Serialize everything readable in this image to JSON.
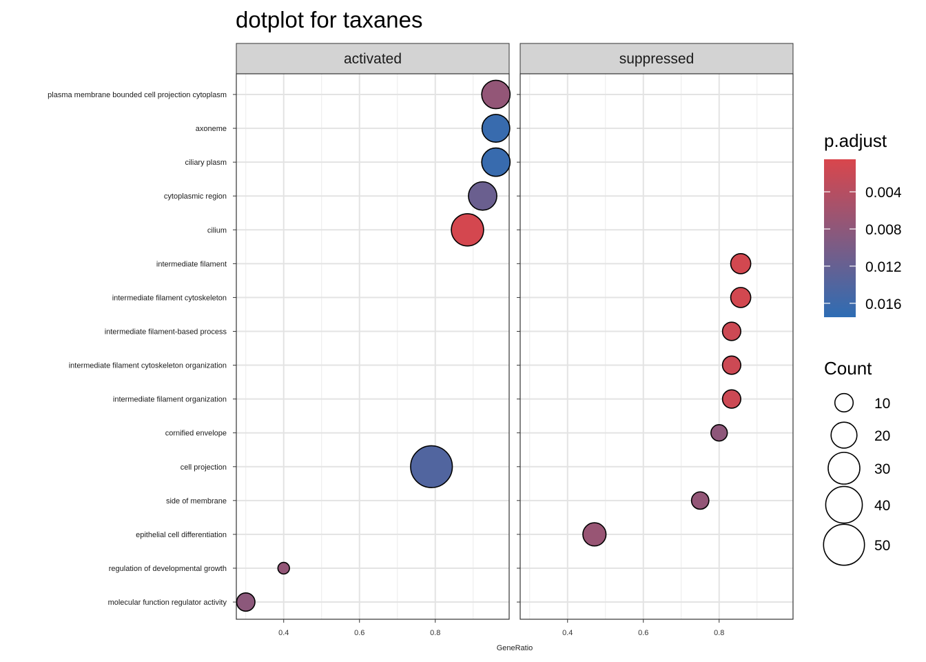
{
  "chart_data": {
    "type": "scatter",
    "title": "dotplot for taxanes",
    "xlabel": "GeneRatio",
    "ylabel": "",
    "xlim": [
      0.275,
      0.995
    ],
    "x_ticks": [
      0.4,
      0.6,
      0.8
    ],
    "x_tick_labels": [
      "0.4",
      "0.6",
      "0.8"
    ],
    "grid": true,
    "panels": [
      "activated",
      "suppressed"
    ],
    "categories": [
      "plasma membrane bounded cell projection cytoplasm",
      "axoneme",
      "ciliary plasm",
      "cytoplasmic region",
      "cilium",
      "intermediate filament",
      "intermediate filament cytoskeleton",
      "intermediate filament-based process",
      "intermediate filament cytoskeleton organization",
      "intermediate filament organization",
      "cornified envelope",
      "cell projection",
      "side of membrane",
      "epithelial cell differentiation",
      "regulation of developmental growth",
      "molecular function regulator activity"
    ],
    "points": [
      {
        "panel": "activated",
        "category": "plasma membrane bounded cell projection cytoplasm",
        "x": 0.96,
        "count": 24,
        "p_adjust": 0.0075
      },
      {
        "panel": "activated",
        "category": "axoneme",
        "x": 0.96,
        "count": 23,
        "p_adjust": 0.0165
      },
      {
        "panel": "activated",
        "category": "ciliary plasm",
        "x": 0.96,
        "count": 24,
        "p_adjust": 0.0165
      },
      {
        "panel": "activated",
        "category": "cytoplasmic region",
        "x": 0.925,
        "count": 24,
        "p_adjust": 0.0115
      },
      {
        "panel": "activated",
        "category": "cilium",
        "x": 0.885,
        "count": 31,
        "p_adjust": 0.001
      },
      {
        "panel": "suppressed",
        "category": "intermediate filament",
        "x": 0.857,
        "count": 12,
        "p_adjust": 0.0012
      },
      {
        "panel": "suppressed",
        "category": "intermediate filament cytoskeleton",
        "x": 0.857,
        "count": 12,
        "p_adjust": 0.0012
      },
      {
        "panel": "suppressed",
        "category": "intermediate filament-based process",
        "x": 0.833,
        "count": 10,
        "p_adjust": 0.0018
      },
      {
        "panel": "suppressed",
        "category": "intermediate filament cytoskeleton organization",
        "x": 0.833,
        "count": 10,
        "p_adjust": 0.0018
      },
      {
        "panel": "suppressed",
        "category": "intermediate filament organization",
        "x": 0.833,
        "count": 10,
        "p_adjust": 0.0018
      },
      {
        "panel": "suppressed",
        "category": "cornified envelope",
        "x": 0.8,
        "count": 8,
        "p_adjust": 0.008
      },
      {
        "panel": "activated",
        "category": "cell projection",
        "x": 0.79,
        "count": 52,
        "p_adjust": 0.014
      },
      {
        "panel": "suppressed",
        "category": "side of membrane",
        "x": 0.75,
        "count": 9,
        "p_adjust": 0.0075
      },
      {
        "panel": "suppressed",
        "category": "epithelial cell differentiation",
        "x": 0.471,
        "count": 16,
        "p_adjust": 0.007
      },
      {
        "panel": "activated",
        "category": "regulation of developmental growth",
        "x": 0.4,
        "count": 4,
        "p_adjust": 0.0075
      },
      {
        "panel": "activated",
        "category": "molecular function regulator activity",
        "x": 0.3,
        "count": 10,
        "p_adjust": 0.0082
      }
    ],
    "color_legend": {
      "title": "p.adjust",
      "range": [
        0.0005,
        0.0175
      ],
      "ticks": [
        0.004,
        0.008,
        0.012,
        0.016
      ],
      "tick_labels": [
        "0.004",
        "0.008",
        "0.012",
        "0.016"
      ],
      "low_color": "#D9464C",
      "high_color": "#2E6DB4"
    },
    "size_legend": {
      "title": "Count",
      "values": [
        10,
        20,
        30,
        40,
        50
      ],
      "labels": [
        "10",
        "20",
        "30",
        "40",
        "50"
      ]
    }
  }
}
